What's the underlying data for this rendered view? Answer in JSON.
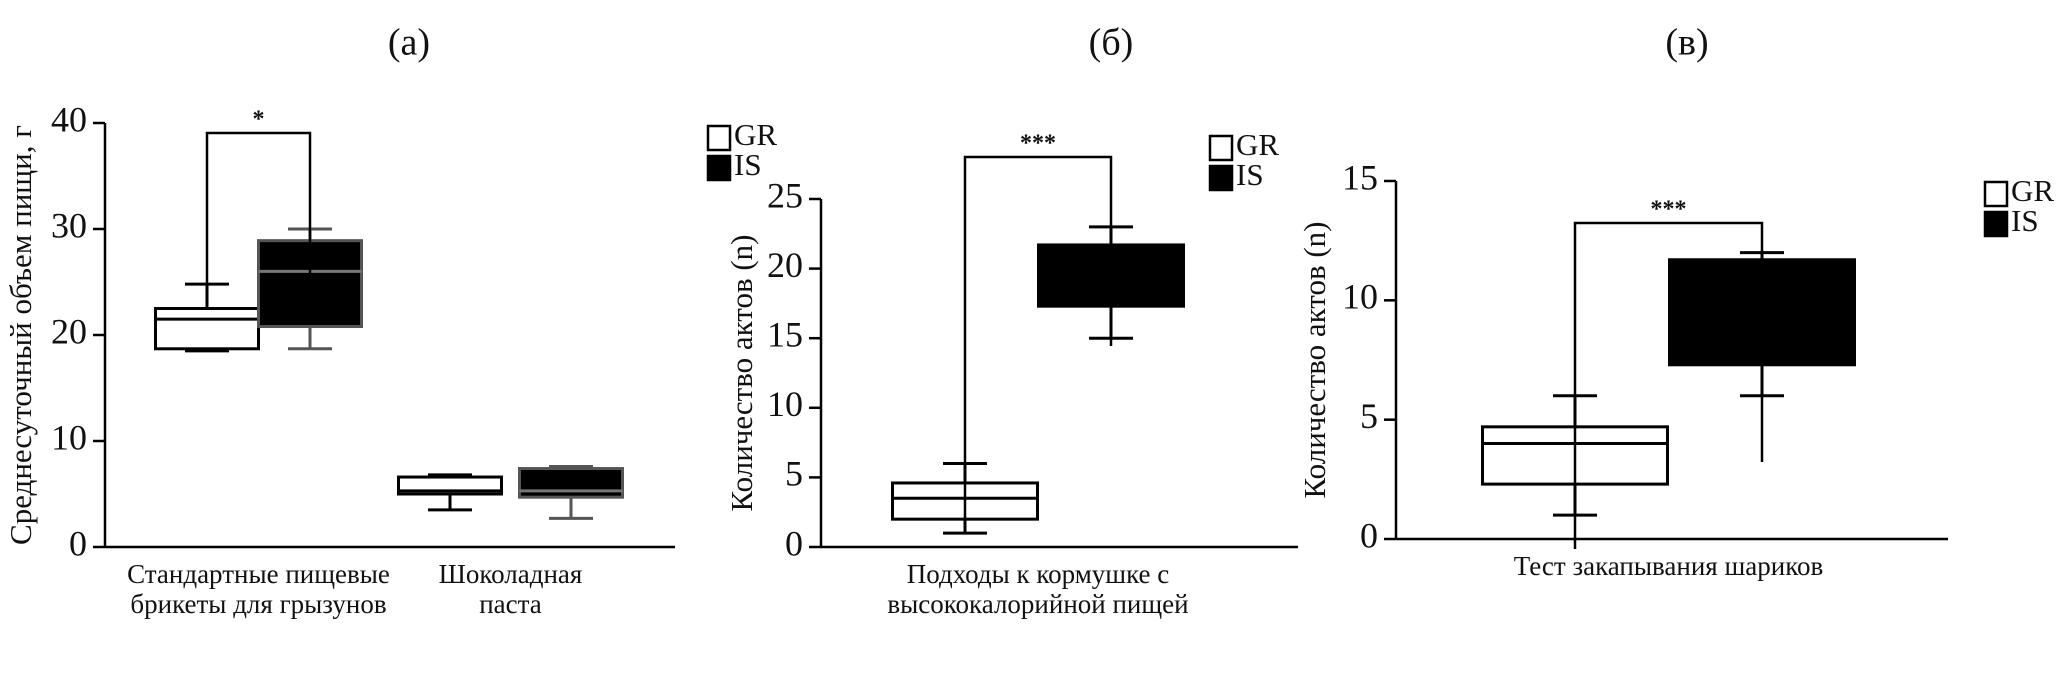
{
  "chart_data": [
    {
      "type": "box",
      "title": "(а)",
      "ylabel": "Среднесуточный объем пищи, г",
      "categories": [
        [
          "Стандартные пищевые",
          "брикеты для грызунов"
        ],
        [
          "Шоколадная",
          "паста"
        ]
      ],
      "ylim": [
        0,
        40
      ],
      "yticks": [
        0,
        10,
        20,
        30,
        40
      ],
      "series": [
        {
          "name": "GR",
          "color": "#ffffff",
          "edge": "#000000",
          "median_color": "#000000",
          "boxes": [
            {
              "min": 18.5,
              "q1": 18.7,
              "median": 21.5,
              "q3": 22.5,
              "max": 24.8
            },
            {
              "min": 3.5,
              "q1": 5,
              "median": 5.3,
              "q3": 6.6,
              "max": 6.8
            }
          ]
        },
        {
          "name": "IS",
          "color": "#000000",
          "edge": "#555555",
          "median_color": "#777777",
          "boxes": [
            {
              "min": 18.7,
              "q1": 20.8,
              "median": 26,
              "q3": 28.9,
              "max": 30
            },
            {
              "min": 2.7,
              "q1": 4.7,
              "median": 5.3,
              "q3": 7.4,
              "max": 7.6
            }
          ]
        }
      ],
      "significance": [
        "*"
      ]
    },
    {
      "type": "box",
      "title": "(б)",
      "ylabel": "Количество актов (n)",
      "categories": [
        [
          "Подходы к кормушке с",
          "высококалорийной пищей"
        ]
      ],
      "ylim": [
        0,
        25
      ],
      "yticks": [
        0,
        5,
        10,
        15,
        20,
        25
      ],
      "series": [
        {
          "name": "GR",
          "color": "#ffffff",
          "edge": "#000000",
          "median_color": "#000000",
          "boxes": [
            {
              "min": 1,
              "q1": 2,
              "median": 3.5,
              "q3": 4.6,
              "max": 6
            }
          ]
        },
        {
          "name": "IS",
          "color": "#000000",
          "edge": "#000000",
          "boxes": [
            {
              "min": 15,
              "q1": 17.3,
              "q3": 21.7,
              "max": 23
            }
          ]
        }
      ],
      "significance": [
        "***"
      ]
    },
    {
      "type": "box",
      "title": "(в)",
      "ylabel": "Количество актов (n)",
      "categories": [
        [
          "Тест закапывания шариков"
        ]
      ],
      "ylim": [
        0,
        15
      ],
      "yticks": [
        0,
        5,
        10,
        15
      ],
      "series": [
        {
          "name": "GR",
          "color": "#ffffff",
          "edge": "#000000",
          "median_color": "#000000",
          "boxes": [
            {
              "min": 1,
              "q1": 2.3,
              "median": 4,
              "q3": 4.7,
              "max": 6
            }
          ]
        },
        {
          "name": "IS",
          "color": "#000000",
          "edge": "#000000",
          "boxes": [
            {
              "min": 6,
              "q1": 7.3,
              "q3": 11.7,
              "max": 12
            }
          ]
        }
      ],
      "significance": [
        "***"
      ]
    }
  ]
}
